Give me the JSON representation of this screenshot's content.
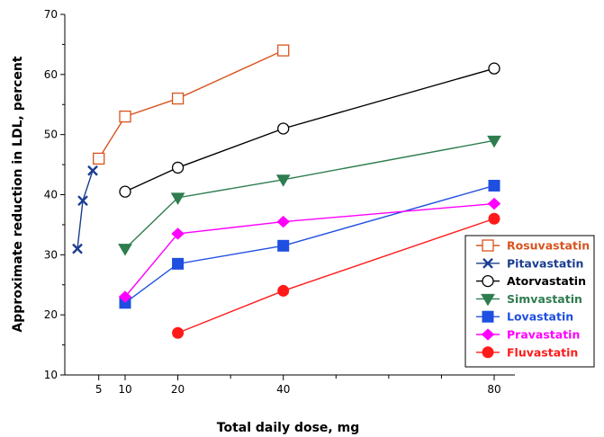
{
  "chart_data": {
    "type": "line",
    "xlabel": "Total daily dose, mg",
    "ylabel": "Approximate reduction in LDL, percent",
    "xlim": [
      0,
      80
    ],
    "ylim": [
      10,
      70
    ],
    "x_ticks": [
      5,
      10,
      20,
      40,
      80
    ],
    "y_ticks": [
      10,
      20,
      30,
      40,
      50,
      60,
      70
    ],
    "grid": false,
    "legend_position": "bottom-right",
    "series": [
      {
        "name": "Rosuvastatin",
        "color": "#d9531e",
        "marker": "open-square",
        "x": [
          5,
          10,
          20,
          40
        ],
        "y": [
          46,
          53,
          56,
          64
        ]
      },
      {
        "name": "Pitavastatin",
        "color": "#1a3d8f",
        "marker": "x",
        "x": [
          1,
          2,
          4
        ],
        "y": [
          31,
          39,
          44
        ]
      },
      {
        "name": "Atorvastatin",
        "color": "#000000",
        "marker": "open-circle",
        "x": [
          10,
          20,
          40,
          80
        ],
        "y": [
          40.5,
          44.5,
          51,
          61
        ]
      },
      {
        "name": "Simvastatin",
        "color": "#2e7d4f",
        "marker": "triangle-down",
        "x": [
          10,
          20,
          40,
          80
        ],
        "y": [
          31,
          39.5,
          42.5,
          49
        ]
      },
      {
        "name": "Lovastatin",
        "color": "#1f4fe0",
        "marker": "filled-square",
        "x": [
          10,
          20,
          40,
          80
        ],
        "y": [
          22,
          28.5,
          31.5,
          41.5
        ]
      },
      {
        "name": "Pravastatin",
        "color": "#ff00ff",
        "marker": "diamond",
        "x": [
          10,
          20,
          40,
          80
        ],
        "y": [
          23,
          33.5,
          35.5,
          38.5
        ]
      },
      {
        "name": "Fluvastatin",
        "color": "#ff1a1a",
        "marker": "filled-circle",
        "x": [
          20,
          40,
          80
        ],
        "y": [
          17,
          24,
          36
        ]
      }
    ]
  }
}
